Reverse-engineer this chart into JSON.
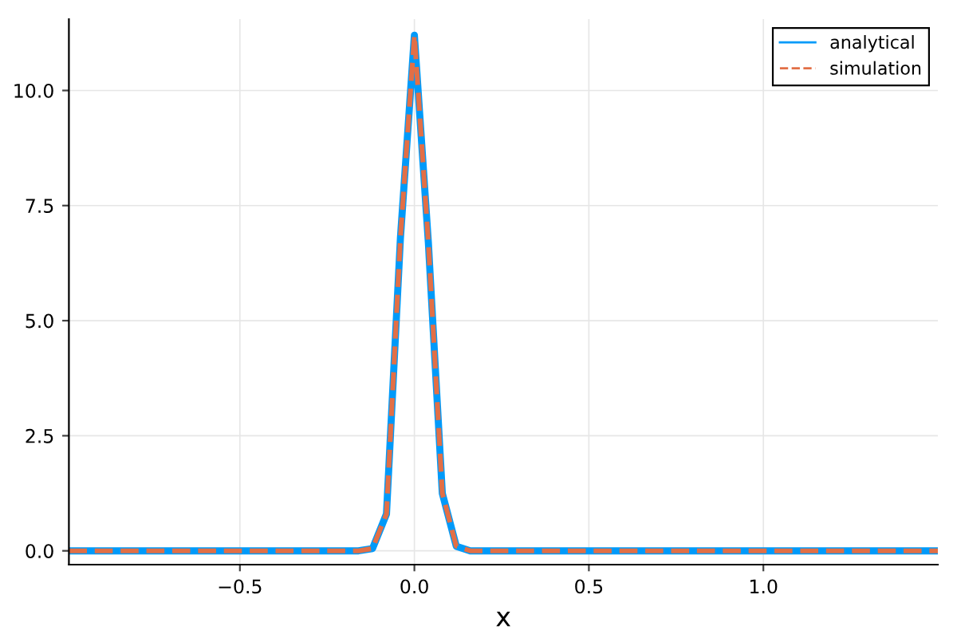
{
  "chart_data": {
    "type": "line",
    "xlabel": "x",
    "x": [
      -0.99,
      -0.16,
      -0.12,
      -0.08,
      -0.04,
      0.0,
      0.04,
      0.08,
      0.12,
      0.16,
      1.5
    ],
    "series": [
      {
        "name": "analytical",
        "color": "#009af9",
        "line_style": "solid",
        "values": [
          0,
          0,
          0.05,
          0.8,
          6.8,
          11.2,
          6.7,
          1.25,
          0.1,
          0,
          0
        ]
      },
      {
        "name": "simulation",
        "color": "#e26f46",
        "line_style": "dashed",
        "values": [
          0,
          0,
          0.05,
          0.8,
          6.8,
          11.2,
          6.7,
          1.25,
          0.1,
          0,
          0
        ]
      }
    ],
    "xlim": [
      -0.99,
      1.5
    ],
    "ylim": [
      -0.3,
      11.55
    ],
    "xticks": [
      {
        "value": -0.5,
        "label": "−0.5"
      },
      {
        "value": 0,
        "label": "0.0"
      },
      {
        "value": 0.5,
        "label": "0.5"
      },
      {
        "value": 1.0,
        "label": "1.0"
      }
    ],
    "yticks": [
      {
        "value": 0,
        "label": "0.0"
      },
      {
        "value": 2.5,
        "label": "2.5"
      },
      {
        "value": 5,
        "label": "5.0"
      },
      {
        "value": 7.5,
        "label": "7.5"
      },
      {
        "value": 10,
        "label": "10.0"
      }
    ],
    "grid": true,
    "legend": "top right"
  }
}
